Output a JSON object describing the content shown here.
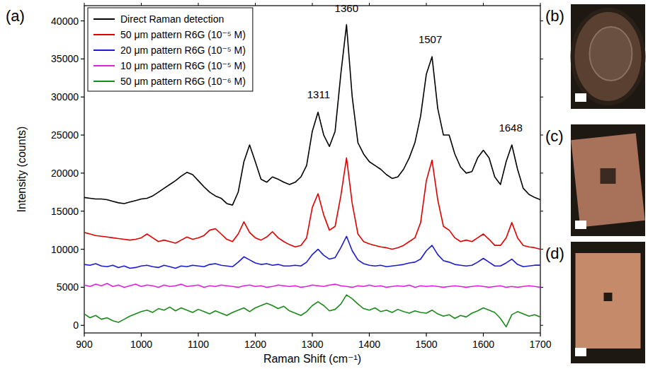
{
  "chart_data": {
    "type": "line",
    "xlabel": "Raman Shift (cm⁻¹)",
    "ylabel": "Intensity (counts)",
    "xlim": [
      900,
      1700
    ],
    "ylim": [
      -1000,
      42000
    ],
    "xticks": [
      900,
      1000,
      1100,
      1200,
      1300,
      1400,
      1500,
      1600,
      1700
    ],
    "yticks": [
      0,
      5000,
      10000,
      15000,
      20000,
      25000,
      30000,
      35000,
      40000
    ],
    "legend": "upper left",
    "grid": false,
    "x": [
      900,
      910,
      920,
      930,
      940,
      950,
      960,
      970,
      980,
      990,
      1000,
      1010,
      1020,
      1030,
      1040,
      1050,
      1060,
      1070,
      1080,
      1090,
      1100,
      1110,
      1120,
      1130,
      1140,
      1150,
      1160,
      1170,
      1180,
      1190,
      1200,
      1210,
      1220,
      1230,
      1240,
      1250,
      1260,
      1270,
      1280,
      1290,
      1300,
      1310,
      1320,
      1330,
      1340,
      1350,
      1360,
      1370,
      1380,
      1390,
      1400,
      1410,
      1420,
      1430,
      1440,
      1450,
      1460,
      1470,
      1480,
      1490,
      1500,
      1510,
      1520,
      1530,
      1540,
      1550,
      1560,
      1570,
      1580,
      1590,
      1600,
      1610,
      1620,
      1630,
      1640,
      1650,
      1660,
      1670,
      1680,
      1690,
      1700
    ],
    "series": [
      {
        "name": "Direct Raman detection",
        "color": "#000000",
        "values": [
          16800,
          16700,
          16600,
          16600,
          16500,
          16300,
          16100,
          16000,
          16200,
          16400,
          16600,
          16700,
          17000,
          17500,
          18000,
          18500,
          19000,
          19600,
          20100,
          19800,
          19000,
          18200,
          17500,
          17000,
          16700,
          16000,
          15800,
          17500,
          21500,
          23700,
          21500,
          19200,
          18800,
          19500,
          19200,
          18800,
          18500,
          18800,
          19500,
          21000,
          25500,
          28000,
          25000,
          23500,
          25500,
          33000,
          39500,
          30000,
          24000,
          22500,
          21500,
          21000,
          20500,
          19800,
          19300,
          19500,
          20500,
          22000,
          24000,
          27500,
          33000,
          35300,
          28500,
          25000,
          25000,
          22500,
          20800,
          20000,
          20200,
          22000,
          23000,
          22000,
          19500,
          18500,
          21500,
          23700,
          20500,
          18000,
          17200,
          16800,
          16500
        ]
      },
      {
        "name": "50 μm pattern R6G (10⁻⁵ M)",
        "color": "#e00000",
        "values": [
          12200,
          12000,
          11800,
          11700,
          11600,
          11500,
          11400,
          11300,
          11200,
          11300,
          11500,
          12000,
          11500,
          11000,
          11200,
          11000,
          10800,
          11200,
          11600,
          11300,
          11500,
          11800,
          12500,
          12700,
          12000,
          11300,
          11000,
          12000,
          13600,
          12200,
          11500,
          11200,
          11600,
          12300,
          11500,
          11000,
          10600,
          10300,
          10500,
          11500,
          15500,
          17300,
          14500,
          12500,
          13000,
          17000,
          22000,
          16000,
          12000,
          11000,
          10700,
          10500,
          10300,
          10200,
          10000,
          10200,
          10500,
          11000,
          11500,
          13500,
          19000,
          21700,
          16500,
          13000,
          12500,
          11500,
          11000,
          11200,
          11000,
          11500,
          12000,
          11300,
          10500,
          10500,
          11500,
          13500,
          11500,
          10500,
          10300,
          10200,
          10000
        ]
      },
      {
        "name": "20 μm pattern R6G (10⁻⁵ M)",
        "color": "#1a1ad0",
        "values": [
          8000,
          7900,
          8100,
          7800,
          7700,
          7900,
          7600,
          7800,
          7500,
          7600,
          7800,
          7900,
          7700,
          7600,
          7900,
          7700,
          7500,
          7800,
          7700,
          7900,
          7800,
          7700,
          8000,
          8100,
          7900,
          7800,
          7700,
          8300,
          9000,
          8600,
          8200,
          8000,
          8100,
          7900,
          8000,
          7800,
          7800,
          7900,
          7800,
          8300,
          9300,
          10000,
          9200,
          8700,
          8900,
          10200,
          11700,
          9800,
          8600,
          8100,
          7900,
          7800,
          7900,
          7700,
          7800,
          7900,
          8000,
          8200,
          8300,
          8700,
          9800,
          10500,
          9300,
          8500,
          8300,
          8000,
          7900,
          7800,
          7900,
          8300,
          8800,
          8300,
          7800,
          7800,
          8200,
          8700,
          8000,
          7700,
          7800,
          7900,
          7900
        ]
      },
      {
        "name": "10 μm pattern R6G (10⁻⁵ M)",
        "color": "#e020e0",
        "values": [
          5300,
          5100,
          5400,
          5200,
          5500,
          5100,
          5300,
          5000,
          5200,
          5400,
          5100,
          5300,
          5200,
          5000,
          5300,
          5100,
          5200,
          5400,
          5100,
          5200,
          5300,
          5000,
          5200,
          5100,
          5300,
          5200,
          5100,
          5000,
          5200,
          5300,
          5100,
          5200,
          5000,
          5100,
          5300,
          5200,
          5100,
          5200,
          5000,
          5100,
          5300,
          5200,
          5100,
          5300,
          5400,
          5200,
          5100,
          5000,
          5200,
          5100,
          5300,
          5100,
          5200,
          5000,
          5100,
          5200,
          5100,
          5300,
          5000,
          5200,
          5100,
          5200,
          5100,
          5000,
          5100,
          5200,
          5100,
          5000,
          5100,
          5200,
          5100,
          5000,
          5100,
          5200,
          5000,
          5100,
          5000,
          5100,
          5200,
          5100,
          5000
        ]
      },
      {
        "name": "50 μm pattern R6G (10⁻⁶ M)",
        "color": "#1a8a1a",
        "values": [
          1500,
          1000,
          1300,
          800,
          1000,
          600,
          400,
          800,
          1200,
          1500,
          1800,
          2000,
          1700,
          2200,
          2000,
          2400,
          1900,
          2300,
          2000,
          1700,
          2100,
          1800,
          1500,
          1900,
          1600,
          1300,
          1700,
          2000,
          2300,
          1800,
          2300,
          2600,
          2900,
          2600,
          2200,
          2500,
          1900,
          1600,
          1300,
          1800,
          2600,
          3100,
          2600,
          1900,
          2100,
          2800,
          4000,
          3500,
          2800,
          2200,
          2000,
          2300,
          1800,
          2000,
          1700,
          2100,
          1800,
          1600,
          1900,
          1700,
          1600,
          2000,
          1500,
          1200,
          1400,
          900,
          1300,
          1100,
          1600,
          1900,
          2300,
          2000,
          1700,
          900,
          -200,
          1400,
          1800,
          1500,
          1200,
          1400,
          1100
        ]
      }
    ],
    "annotations": [
      {
        "text": "1311",
        "x": 1311,
        "y": 29800
      },
      {
        "text": "1360",
        "x": 1360,
        "y": 41200
      },
      {
        "text": "1507",
        "x": 1507,
        "y": 37100
      },
      {
        "text": "1648",
        "x": 1648,
        "y": 25500
      }
    ]
  },
  "figure": {
    "panel_labels": [
      "(a)",
      "(b)",
      "(c)",
      "(d)"
    ]
  }
}
